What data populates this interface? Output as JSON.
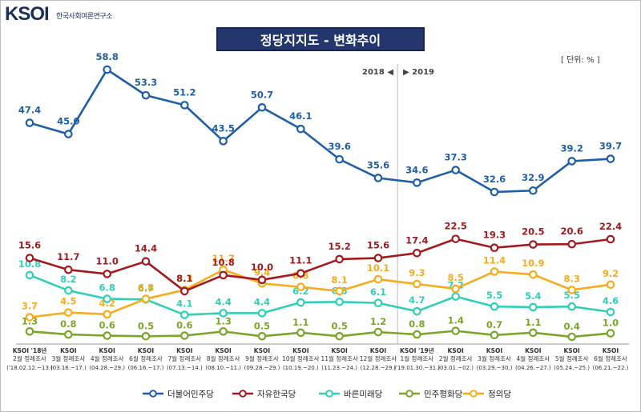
{
  "logo": {
    "mark": "KSOI",
    "org_name": "한국사회여론연구소"
  },
  "header": {
    "title": "정당지지도 - 변화추이",
    "unit": "[ 단위: % ]"
  },
  "year_divider": {
    "left": "2018 ◀",
    "right": "▶ 2019"
  },
  "chart_data": {
    "type": "line",
    "title": "정당지지도 - 변화추이",
    "unit": "[ 단위: % ]",
    "categories": [
      {
        "brand": "KSOI '18년",
        "survey": "2월 정례조사",
        "dates": "('18.02.12.~13.)"
      },
      {
        "brand": "KSOI",
        "survey": "3월 정례조사",
        "dates": "(03.16.~17.)"
      },
      {
        "brand": "KSOI",
        "survey": "4월 정례조사",
        "dates": "(04.28.~29.)"
      },
      {
        "brand": "KSOI",
        "survey": "6월 정례조사",
        "dates": "(06.16.~17.)"
      },
      {
        "brand": "KSOI",
        "survey": "7월 정례조사",
        "dates": "(07.13.~14.)"
      },
      {
        "brand": "KSOI",
        "survey": "8월 정례조사",
        "dates": "(08.10.~11.)"
      },
      {
        "brand": "KSOI",
        "survey": "9월 정례조사",
        "dates": "(09.28.~29.)"
      },
      {
        "brand": "KSOI",
        "survey": "10월 정례조사",
        "dates": "(10.19.~20.)"
      },
      {
        "brand": "KSOI",
        "survey": "11월 정례조사",
        "dates": "(11.23.~24.)"
      },
      {
        "brand": "KSOI",
        "survey": "12월 정례조사",
        "dates": "(12.28.~29.)"
      },
      {
        "brand": "KSOI '19년",
        "survey": "1월 정례조사",
        "dates": "('19.01.30.~31.)"
      },
      {
        "brand": "KSOI",
        "survey": "2월 정례조사",
        "dates": "(03.01.~02.)"
      },
      {
        "brand": "KSOI",
        "survey": "3월 정례조사",
        "dates": "(03.29.~30.)"
      },
      {
        "brand": "KSOI",
        "survey": "4월 정례조사",
        "dates": "(04.26.~27.)"
      },
      {
        "brand": "KSOI",
        "survey": "5월 정례조사",
        "dates": "(05.24.~25.)"
      },
      {
        "brand": "KSOI",
        "survey": "6월 정례조사",
        "dates": "(06.21.~22.)"
      }
    ],
    "series": [
      {
        "name": "더불어민주당",
        "color": "#1f5fa8",
        "values": [
          47.4,
          45.0,
          58.8,
          53.3,
          51.2,
          43.5,
          50.7,
          46.1,
          39.6,
          35.6,
          34.6,
          37.3,
          32.6,
          32.9,
          39.2,
          39.7
        ]
      },
      {
        "name": "자유한국당",
        "color": "#a31a1e",
        "values": [
          15.6,
          11.7,
          11.0,
          14.4,
          8.1,
          10.8,
          10.0,
          11.1,
          15.2,
          15.6,
          17.4,
          22.5,
          19.3,
          20.5,
          20.6,
          22.4
        ]
      },
      {
        "name": "바른미래당",
        "color": "#2fcfb8",
        "values": [
          10.8,
          8.2,
          6.8,
          6.7,
          4.1,
          4.4,
          4.4,
          6.2,
          6.3,
          6.1,
          4.7,
          7.2,
          5.5,
          5.4,
          5.5,
          4.6
        ]
      },
      {
        "name": "민주평화당",
        "color": "#7aa62a",
        "values": [
          1.3,
          0.8,
          0.6,
          0.5,
          0.6,
          1.3,
          0.5,
          1.1,
          0.5,
          1.2,
          0.8,
          1.4,
          0.7,
          1.1,
          0.4,
          1.0
        ]
      },
      {
        "name": "정의당",
        "color": "#f6ac1c",
        "values": [
          3.7,
          4.5,
          4.2,
          6.8,
          8.3,
          11.7,
          9.4,
          8.8,
          8.1,
          10.1,
          9.3,
          8.5,
          11.4,
          10.9,
          8.3,
          9.2
        ]
      }
    ],
    "legend_position": "bottom",
    "grid": false
  }
}
